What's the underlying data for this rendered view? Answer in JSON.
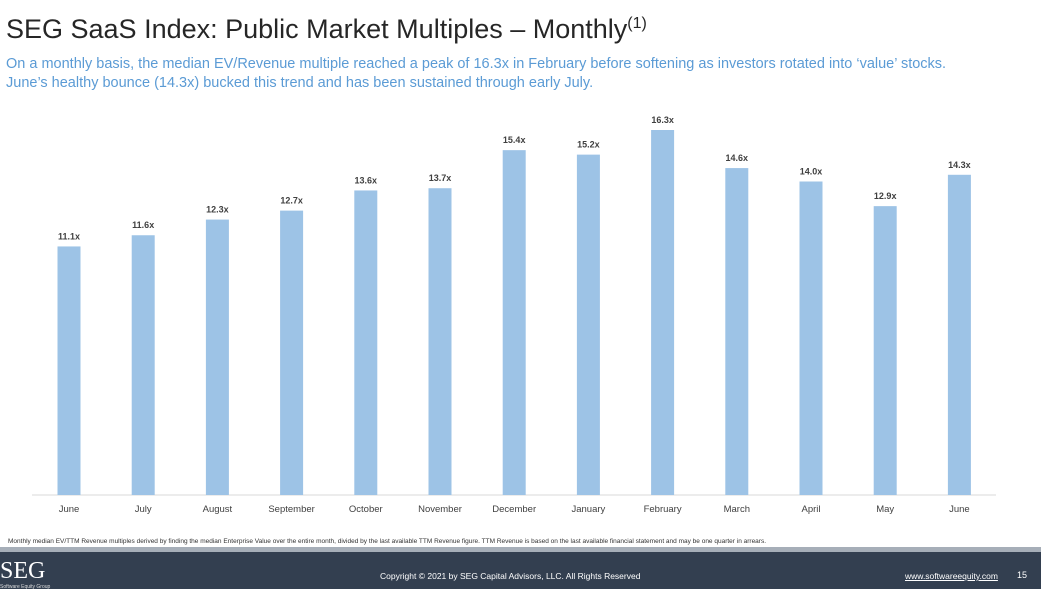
{
  "header": {
    "title": "SEG SaaS Index: Public Market Multiples – Monthly",
    "title_sup": "(1)",
    "subtitle_line1": "On a monthly basis, the median EV/Revenue multiple reached a peak of 16.3x in February before softening as investors rotated into ‘value’ stocks.",
    "subtitle_line2": "June’s healthy bounce (14.3x) bucked this trend and has been sustained through early July."
  },
  "chart_data": {
    "type": "bar",
    "categories": [
      "June",
      "July",
      "August",
      "September",
      "October",
      "November",
      "December",
      "January",
      "February",
      "March",
      "April",
      "May",
      "June"
    ],
    "values": [
      11.1,
      11.6,
      12.3,
      12.7,
      13.6,
      13.7,
      15.4,
      15.2,
      16.3,
      14.6,
      14.0,
      12.9,
      14.3
    ],
    "labels": [
      "11.1x",
      "11.6x",
      "12.3x",
      "12.7x",
      "13.6x",
      "13.7x",
      "15.4x",
      "15.2x",
      "16.3x",
      "14.6x",
      "14.0x",
      "12.9x",
      "14.3x"
    ],
    "ylim": [
      0,
      16.3
    ],
    "grid": false,
    "bar_color": "#9dc3e6"
  },
  "footnote": "Monthly median EV/TTM Revenue multiples derived by finding the median Enterprise Value over the entire month, divided by the last available TTM Revenue figure. TTM Revenue is based on the last available financial statement and may be one quarter in arrears.",
  "footer": {
    "logo": "SEG",
    "logo_sub": "Software Equity Group",
    "copyright": "Copyright © 2021 by SEG Capital Advisors, LLC. All Rights Reserved",
    "url": "www.softwareequity.com",
    "page": "15"
  }
}
